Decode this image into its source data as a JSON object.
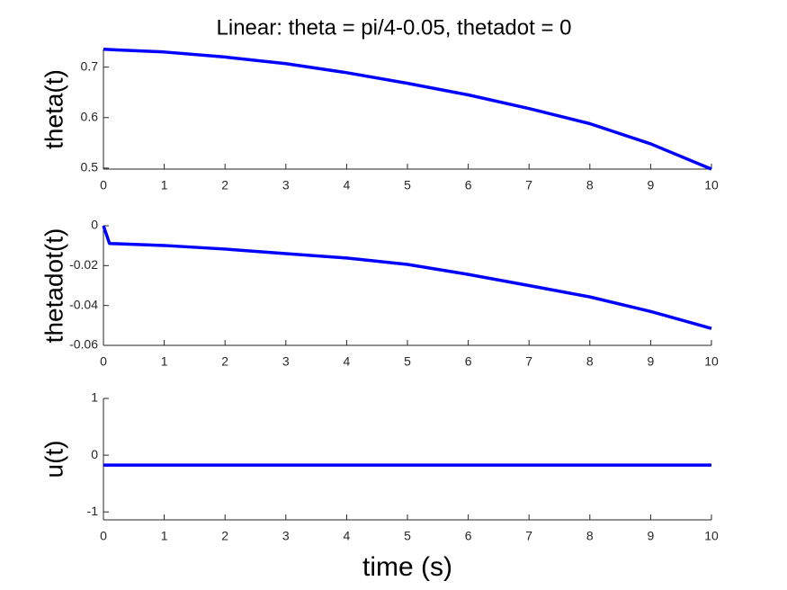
{
  "chart_data": [
    {
      "type": "line",
      "title": "Linear: theta = pi/4-0.05, thetadot = 0",
      "ylabel": "theta(t)",
      "x": [
        0,
        1,
        2,
        3,
        4,
        5,
        6,
        7,
        8,
        9,
        10
      ],
      "values": [
        0.7354,
        0.73,
        0.72,
        0.707,
        0.689,
        0.668,
        0.645,
        0.618,
        0.588,
        0.548,
        0.498
      ],
      "color": "#0000ff",
      "xlim": [
        0,
        10
      ],
      "ylim": [
        0.498,
        0.735
      ],
      "xticks": [
        0,
        1,
        2,
        3,
        4,
        5,
        6,
        7,
        8,
        9,
        10
      ],
      "yticks": [
        0.5,
        0.6,
        0.7
      ]
    },
    {
      "type": "line",
      "ylabel": "thetadot(t)",
      "x": [
        0,
        0.1,
        1,
        2,
        3,
        4,
        5,
        6,
        7,
        8,
        9,
        10
      ],
      "values": [
        0,
        -0.0089,
        -0.0099,
        -0.0117,
        -0.014,
        -0.0162,
        -0.0194,
        -0.0244,
        -0.03,
        -0.0357,
        -0.043,
        -0.0515
      ],
      "color": "#0000ff",
      "xlim": [
        0,
        10
      ],
      "ylim": [
        -0.06,
        0
      ],
      "xticks": [
        0,
        1,
        2,
        3,
        4,
        5,
        6,
        7,
        8,
        9,
        10
      ],
      "yticks": [
        -0.06,
        -0.04,
        -0.02,
        0
      ]
    },
    {
      "type": "line",
      "ylabel": "u(t)",
      "xlabel": "time (s)",
      "x": [
        0,
        10
      ],
      "values": [
        -0.175,
        -0.175
      ],
      "color": "#0000ff",
      "xlim": [
        0,
        10
      ],
      "ylim": [
        -1.14,
        1
      ],
      "xticks": [
        0,
        1,
        2,
        3,
        4,
        5,
        6,
        7,
        8,
        9,
        10
      ],
      "yticks": [
        -1,
        0,
        1
      ]
    }
  ]
}
